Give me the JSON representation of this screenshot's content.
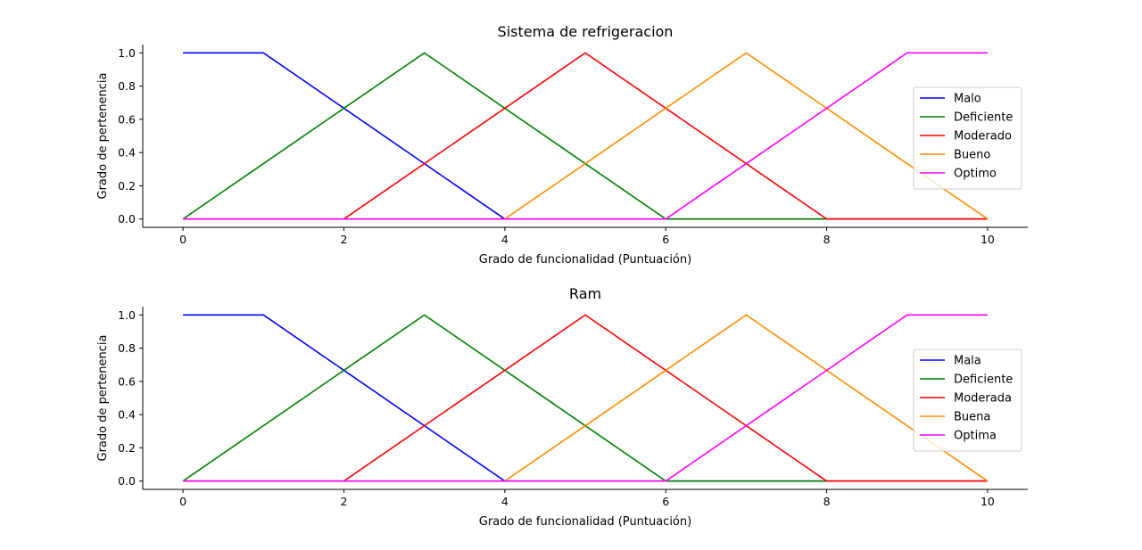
{
  "chart_data": [
    {
      "type": "line",
      "title": "Sistema de refrigeracion",
      "xlabel": "Grado de funcionalidad (Puntuación)",
      "ylabel": "Grado de pertenencia",
      "xlim": [
        -0.5,
        10.5
      ],
      "ylim": [
        -0.05,
        1.05
      ],
      "xticks": [
        0,
        2,
        4,
        6,
        8,
        10
      ],
      "yticks": [
        0.0,
        0.2,
        0.4,
        0.6,
        0.8,
        1.0
      ],
      "xtick_labels": [
        "0",
        "2",
        "4",
        "6",
        "8",
        "10"
      ],
      "ytick_labels": [
        "0.0",
        "0.2",
        "0.4",
        "0.6",
        "0.8",
        "1.0"
      ],
      "grid": false,
      "legend_position": "center-right",
      "series": [
        {
          "name": "Malo",
          "color": "#0000ff",
          "x": [
            0,
            1,
            4,
            10
          ],
          "y": [
            1,
            1,
            0,
            0
          ]
        },
        {
          "name": "Deficiente",
          "color": "#008000",
          "x": [
            0,
            3,
            6,
            10
          ],
          "y": [
            0,
            1,
            0,
            0
          ]
        },
        {
          "name": "Moderado",
          "color": "#ff0000",
          "x": [
            0,
            2,
            5,
            8,
            10
          ],
          "y": [
            0,
            0,
            1,
            0,
            0
          ]
        },
        {
          "name": "Bueno",
          "color": "#ff8c00",
          "x": [
            0,
            4,
            7,
            10
          ],
          "y": [
            0,
            0,
            1,
            0
          ]
        },
        {
          "name": "Optimo",
          "color": "#ff00ff",
          "x": [
            0,
            6,
            9,
            10
          ],
          "y": [
            0,
            0,
            1,
            1
          ]
        }
      ]
    },
    {
      "type": "line",
      "title": "Ram",
      "xlabel": "Grado de funcionalidad (Puntuación)",
      "ylabel": "Grado de pertenencia",
      "xlim": [
        -0.5,
        10.5
      ],
      "ylim": [
        -0.05,
        1.05
      ],
      "xticks": [
        0,
        2,
        4,
        6,
        8,
        10
      ],
      "yticks": [
        0.0,
        0.2,
        0.4,
        0.6,
        0.8,
        1.0
      ],
      "xtick_labels": [
        "0",
        "2",
        "4",
        "6",
        "8",
        "10"
      ],
      "ytick_labels": [
        "0.0",
        "0.2",
        "0.4",
        "0.6",
        "0.8",
        "1.0"
      ],
      "grid": false,
      "legend_position": "center-right",
      "series": [
        {
          "name": "Mala",
          "color": "#0000ff",
          "x": [
            0,
            1,
            4,
            10
          ],
          "y": [
            1,
            1,
            0,
            0
          ]
        },
        {
          "name": "Deficiente",
          "color": "#008000",
          "x": [
            0,
            3,
            6,
            10
          ],
          "y": [
            0,
            1,
            0,
            0
          ]
        },
        {
          "name": "Moderada",
          "color": "#ff0000",
          "x": [
            0,
            2,
            5,
            8,
            10
          ],
          "y": [
            0,
            0,
            1,
            0,
            0
          ]
        },
        {
          "name": "Buena",
          "color": "#ff8c00",
          "x": [
            0,
            4,
            7,
            10
          ],
          "y": [
            0,
            0,
            1,
            0
          ]
        },
        {
          "name": "Optima",
          "color": "#ff00ff",
          "x": [
            0,
            6,
            9,
            10
          ],
          "y": [
            0,
            0,
            1,
            1
          ]
        }
      ]
    }
  ]
}
